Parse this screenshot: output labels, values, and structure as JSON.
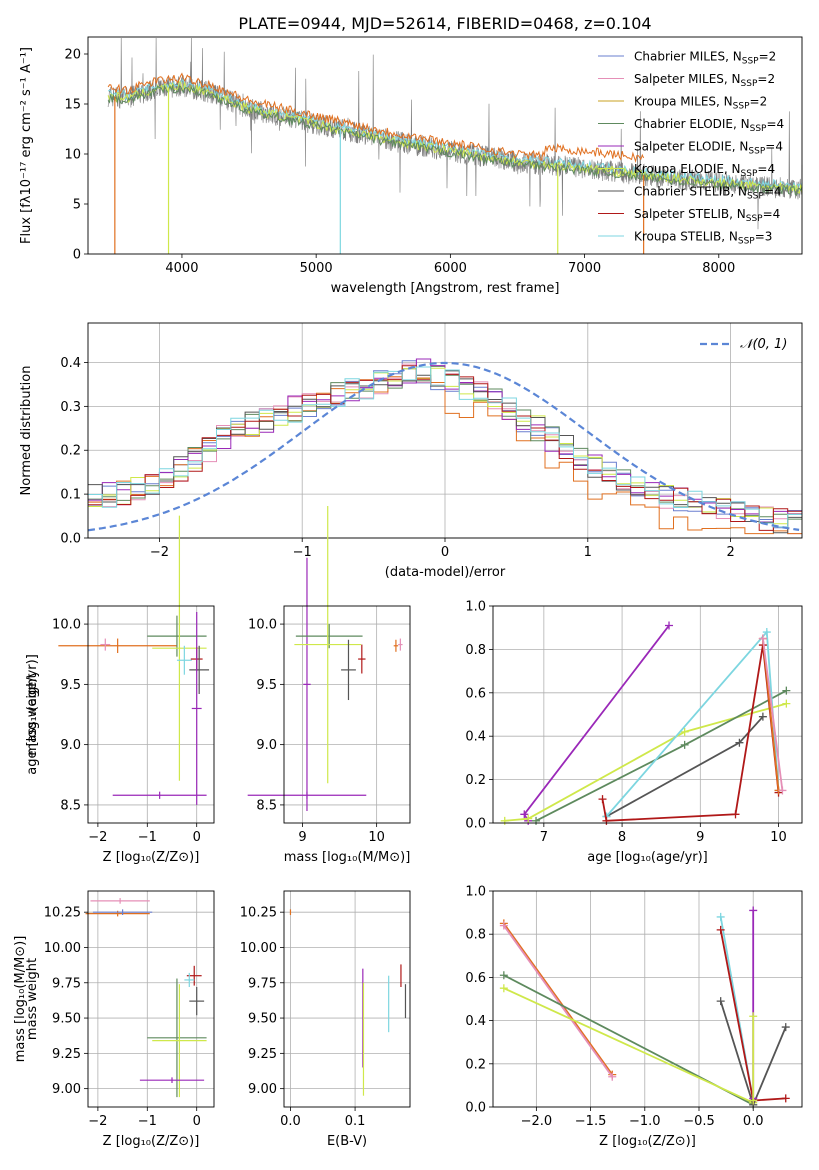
{
  "figure_title": "PLATE=0944, MJD=52614, FIBERID=0468, z=0.104",
  "colors": {
    "Chabrier MILES": "#6a7fcf",
    "Salpeter MILES": "#e58fb7",
    "Kroupa MILES": "#c8a020",
    "Chabrier ELODIE": "#5e8a5e",
    "Salpeter ELODIE": "#9a28b8",
    "Kroupa ELODIE": "#cfe84a",
    "Chabrier STELIB": "#555555",
    "Salpeter STELIB": "#b01818",
    "Kroupa STELIB": "#7dd6e0",
    "Kroupa MILES stepped": "#e07020",
    "normal": "#5b86d6",
    "grid": "#b0b0b0"
  },
  "chart_data": [
    {
      "id": "spectrum",
      "type": "line",
      "xlabel": "wavelength [Angstrom, rest frame]",
      "ylabel": "Flux [fλ10⁻¹⁷ erg cm⁻² s⁻¹ A⁻¹]",
      "xlim": [
        3300,
        8620
      ],
      "ylim": [
        0,
        21.7
      ],
      "xticks": [
        "4000",
        "5000",
        "6000",
        "7000",
        "8000"
      ],
      "yticks": [
        "0",
        "5",
        "10",
        "15",
        "20"
      ],
      "grid": false,
      "legend_position": "top-right",
      "series": [
        {
          "name": "Chabrier MILES, N_SSP=2",
          "label": "Chabrier MILES, N",
          "sub": "SSP",
          "n": "=2"
        },
        {
          "name": "Salpeter MILES, N_SSP=2",
          "label": "Salpeter MILES, N",
          "sub": "SSP",
          "n": "=2"
        },
        {
          "name": "Kroupa MILES, N_SSP=2",
          "label": "Kroupa MILES, N",
          "sub": "SSP",
          "n": "=2"
        },
        {
          "name": "Chabrier ELODIE, N_SSP=4",
          "label": "Chabrier ELODIE, N",
          "sub": "SSP",
          "n": "=4"
        },
        {
          "name": "Salpeter ELODIE, N_SSP=4",
          "label": "Salpeter ELODIE, N",
          "sub": "SSP",
          "n": "=4"
        },
        {
          "name": "Kroupa ELODIE, N_SSP=4",
          "label": "Kroupa ELODIE, N",
          "sub": "SSP",
          "n": "=4"
        },
        {
          "name": "Chabrier STELIB, N_SSP=4",
          "label": "Chabrier STELIB, N",
          "sub": "SSP",
          "n": "=4"
        },
        {
          "name": "Salpeter STELIB, N_SSP=4",
          "label": "Salpeter STELIB, N",
          "sub": "SSP",
          "n": "=4"
        },
        {
          "name": "Kroupa STELIB, N_SSP=3",
          "label": "Kroupa STELIB, N",
          "sub": "SSP",
          "n": "=3"
        }
      ],
      "continuum": {
        "x": [
          3450,
          3600,
          3800,
          4000,
          4200,
          4500,
          4800,
          5000,
          5500,
          6000,
          6500,
          7000,
          7500,
          8000,
          8500,
          8620
        ],
        "y": [
          15.8,
          15.6,
          16.5,
          16.8,
          16.2,
          14.5,
          13.6,
          13.0,
          11.5,
          10.3,
          9.2,
          8.6,
          7.8,
          7.1,
          6.6,
          6.5
        ]
      },
      "drops_to_zero_at": [
        3500,
        3900,
        5180,
        6800,
        7440
      ]
    },
    {
      "id": "residuals",
      "type": "area",
      "xlabel": "(data-model)/error",
      "ylabel": "Normed distribution",
      "xlim": [
        -2.5,
        2.5
      ],
      "ylim": [
        0,
        0.49
      ],
      "xticks": [
        "−2",
        "−1",
        "0",
        "1",
        "2"
      ],
      "yticks": [
        "0.0",
        "0.1",
        "0.2",
        "0.3",
        "0.4"
      ],
      "grid": true,
      "legend_position": "top-right",
      "legend": "𝒩(0, 1)",
      "hist_envelope": {
        "x": [
          -2.5,
          -2.0,
          -1.5,
          -1.0,
          -0.5,
          -0.2,
          0.0,
          0.3,
          0.6,
          1.0,
          1.5,
          2.0,
          2.5
        ],
        "y": [
          0.09,
          0.12,
          0.24,
          0.3,
          0.35,
          0.39,
          0.36,
          0.33,
          0.26,
          0.17,
          0.1,
          0.06,
          0.03
        ]
      }
    },
    {
      "id": "age_vs_Z",
      "type": "scatter",
      "xlabel": "Z [log₁₀(Z/Z⊙)]",
      "ylabel": "age  [log₁₀(age/yr)]",
      "xlim": [
        -2.2,
        0.35
      ],
      "ylim": [
        8.35,
        10.15
      ],
      "xticks": [
        "−2",
        "−1",
        "0"
      ],
      "yticks": [
        "8.5",
        "9.0",
        "9.5",
        "10.0"
      ],
      "grid": true,
      "points": [
        {
          "series": "Kroupa MILES stepped",
          "x": -1.6,
          "y": 9.82,
          "xerr": 1.2,
          "yerr": 0.06
        },
        {
          "series": "Salpeter MILES",
          "x": -1.85,
          "y": 9.83,
          "xerr": 0.1,
          "yerr": 0.05
        },
        {
          "series": "Chabrier ELODIE",
          "x": -0.4,
          "y": 9.9,
          "xerr": 0.6,
          "yerr": 0.17
        },
        {
          "series": "Kroupa ELODIE",
          "x": -0.35,
          "y": 9.8,
          "xerr": 0.55,
          "yerr": 1.1
        },
        {
          "series": "Kroupa STELIB",
          "x": -0.25,
          "y": 9.7,
          "xerr": 0.15,
          "yerr": 0.12
        },
        {
          "series": "Salpeter STELIB",
          "x": 0.0,
          "y": 9.71,
          "xerr": 0.12,
          "yerr": 0.1
        },
        {
          "series": "Chabrier STELIB",
          "x": 0.05,
          "y": 9.62,
          "xerr": 0.2,
          "yerr": 0.2
        },
        {
          "series": "Salpeter ELODIE",
          "x": 0.0,
          "y": 9.3,
          "xerr": 0.1,
          "yerr": 0.8
        },
        {
          "series": "Salpeter ELODIE",
          "x": -0.75,
          "y": 8.58,
          "xerr": 0.95,
          "yerr": 0.03
        }
      ]
    },
    {
      "id": "age_vs_mass",
      "type": "scatter",
      "xlabel": "mass [log₁₀(M/M⊙)]",
      "ylabel": "",
      "xlim": [
        8.75,
        10.45
      ],
      "ylim": [
        8.35,
        10.15
      ],
      "xticks": [
        "9",
        "10"
      ],
      "yticks": [
        "8.5",
        "9.0",
        "9.5",
        "10.0"
      ],
      "grid": true,
      "points": [
        {
          "series": "Salpeter ELODIE",
          "x": 9.06,
          "y": 8.58,
          "xerr": 0.8,
          "yerr": 0.03
        },
        {
          "series": "Salpeter ELODIE",
          "x": 9.06,
          "y": 9.5,
          "xerr": 0.05,
          "yerr": 1.05
        },
        {
          "series": "Chabrier ELODIE",
          "x": 9.36,
          "y": 9.9,
          "xerr": 0.45,
          "yerr": 0.1
        },
        {
          "series": "Kroupa ELODIE",
          "x": 9.34,
          "y": 9.83,
          "xerr": 0.45,
          "yerr": 1.15
        },
        {
          "series": "Chabrier STELIB",
          "x": 9.62,
          "y": 9.62,
          "xerr": 0.1,
          "yerr": 0.25
        },
        {
          "series": "Salpeter STELIB",
          "x": 9.8,
          "y": 9.71,
          "xerr": 0.05,
          "yerr": 0.12
        },
        {
          "series": "Kroupa MILES stepped",
          "x": 10.26,
          "y": 9.82,
          "xerr": 0.03,
          "yerr": 0.05
        },
        {
          "series": "Salpeter MILES",
          "x": 10.32,
          "y": 9.83,
          "xerr": 0.03,
          "yerr": 0.05
        }
      ]
    },
    {
      "id": "weight_vs_age",
      "type": "line",
      "xlabel": "age  [log₁₀(age/yr)]",
      "ylabel": "mass weight",
      "xlim": [
        6.35,
        10.3
      ],
      "ylim": [
        0,
        1.0
      ],
      "xticks": [
        "7",
        "8",
        "9",
        "10"
      ],
      "yticks": [
        "0.0",
        "0.2",
        "0.4",
        "0.6",
        "0.8",
        "1.0"
      ],
      "grid": true,
      "series": [
        {
          "name": "Salpeter ELODIE",
          "x": [
            6.8,
            6.75,
            8.6
          ],
          "y": [
            0.01,
            0.04,
            0.91
          ]
        },
        {
          "name": "Kroupa ELODIE",
          "x": [
            6.5,
            6.8,
            8.8,
            10.1
          ],
          "y": [
            0.01,
            0.02,
            0.42,
            0.55
          ]
        },
        {
          "name": "Chabrier ELODIE",
          "x": [
            6.9,
            8.8,
            10.1
          ],
          "y": [
            0.01,
            0.36,
            0.61
          ]
        },
        {
          "name": "Chabrier STELIB",
          "x": [
            7.8,
            9.5,
            9.8
          ],
          "y": [
            0.03,
            0.37,
            0.49
          ]
        },
        {
          "name": "Kroupa STELIB",
          "x": [
            7.8,
            9.85,
            10.0
          ],
          "y": [
            0.03,
            0.88,
            0.15
          ]
        },
        {
          "name": "Salpeter STELIB",
          "x": [
            7.75,
            7.8,
            9.45,
            9.8,
            10.0
          ],
          "y": [
            0.11,
            0.01,
            0.04,
            0.82,
            0.14
          ]
        },
        {
          "name": "Kroupa MILES stepped",
          "x": [
            9.8,
            10.0
          ],
          "y": [
            0.85,
            0.15
          ]
        },
        {
          "name": "Salpeter MILES",
          "x": [
            9.8,
            10.05
          ],
          "y": [
            0.85,
            0.15
          ]
        }
      ]
    },
    {
      "id": "mass_vs_Z",
      "type": "scatter",
      "xlabel": "Z [log₁₀(Z/Z⊙)]",
      "ylabel": "mass [log₁₀(M/M⊙)]",
      "xlim": [
        -2.2,
        0.35
      ],
      "ylim": [
        8.87,
        10.4
      ],
      "xticks": [
        "−2",
        "−1",
        "0"
      ],
      "yticks": [
        "9.00",
        "9.25",
        "9.50",
        "9.75",
        "10.00",
        "10.25"
      ],
      "grid": true,
      "points": [
        {
          "series": "Salpeter MILES",
          "x": -1.55,
          "y": 10.33,
          "xerr": 0.6,
          "yerr": 0.02
        },
        {
          "series": "Kroupa MILES stepped",
          "x": -1.6,
          "y": 10.24,
          "xerr": 0.65,
          "yerr": 0.02
        },
        {
          "series": "Chabrier MILES",
          "x": -1.5,
          "y": 10.25,
          "xerr": 0.6,
          "yerr": 0.02
        },
        {
          "series": "Salpeter STELIB",
          "x": -0.05,
          "y": 9.8,
          "xerr": 0.15,
          "yerr": 0.07
        },
        {
          "series": "Kroupa STELIB",
          "x": -0.15,
          "y": 9.77,
          "xerr": 0.1,
          "yerr": 0.05
        },
        {
          "series": "Chabrier STELIB",
          "x": 0.0,
          "y": 9.62,
          "xerr": 0.15,
          "yerr": 0.1
        },
        {
          "series": "Chabrier ELODIE",
          "x": -0.4,
          "y": 9.36,
          "xerr": 0.6,
          "yerr": 0.42
        },
        {
          "series": "Kroupa ELODIE",
          "x": -0.35,
          "y": 9.34,
          "xerr": 0.55,
          "yerr": 0.4
        },
        {
          "series": "Salpeter ELODIE",
          "x": -0.5,
          "y": 9.06,
          "xerr": 0.65,
          "yerr": 0.02
        }
      ]
    },
    {
      "id": "mass_vs_EBV",
      "type": "scatter",
      "xlabel": "E(B-V)",
      "ylabel": "",
      "xlim": [
        -0.01,
        0.185
      ],
      "ylim": [
        8.87,
        10.4
      ],
      "xticks": [
        "0.0",
        "0.1"
      ],
      "yticks": [
        "9.00",
        "9.25",
        "9.50",
        "9.75",
        "10.00",
        "10.25"
      ],
      "grid": true,
      "points": [
        {
          "series": "Kroupa MILES stepped",
          "x": 0.0,
          "y": 10.25,
          "xerr": 0.0,
          "yerr": 0.02
        },
        {
          "series": "Salpeter ELODIE",
          "x": 0.112,
          "y": 9.5,
          "xerr": 0.0,
          "yerr": 0.35
        },
        {
          "series": "Kroupa ELODIE",
          "x": 0.113,
          "y": 9.35,
          "xerr": 0.0,
          "yerr": 0.4
        },
        {
          "series": "Kroupa STELIB",
          "x": 0.152,
          "y": 9.6,
          "xerr": 0.0,
          "yerr": 0.2
        },
        {
          "series": "Salpeter STELIB",
          "x": 0.171,
          "y": 9.8,
          "xerr": 0.0,
          "yerr": 0.08
        },
        {
          "series": "Chabrier STELIB",
          "x": 0.178,
          "y": 9.62,
          "xerr": 0.0,
          "yerr": 0.12
        }
      ]
    },
    {
      "id": "weight_vs_Z",
      "type": "line",
      "xlabel": "Z [log₁₀(Z/Z⊙)]",
      "ylabel": "mass weight",
      "xlim": [
        -2.4,
        0.45
      ],
      "ylim": [
        0,
        1.0
      ],
      "xticks": [
        "−2.0",
        "−1.5",
        "−1.0",
        "−0.5",
        "0.0"
      ],
      "yticks": [
        "0.0",
        "0.2",
        "0.4",
        "0.6",
        "0.8",
        "1.0"
      ],
      "grid": true,
      "series": [
        {
          "name": "Kroupa MILES stepped",
          "x": [
            -2.3,
            -1.3
          ],
          "y": [
            0.85,
            0.15
          ]
        },
        {
          "name": "Salpeter MILES",
          "x": [
            -2.3,
            -1.3
          ],
          "y": [
            0.84,
            0.14
          ]
        },
        {
          "name": "Chabrier ELODIE",
          "x": [
            -2.3,
            0.0
          ],
          "y": [
            0.61,
            0.01
          ]
        },
        {
          "name": "Kroupa ELODIE",
          "x": [
            -2.3,
            0.0
          ],
          "y": [
            0.55,
            0.02
          ]
        },
        {
          "name": "Chabrier STELIB",
          "x": [
            -0.3,
            0.0,
            0.3
          ],
          "y": [
            0.49,
            0.01,
            0.37
          ]
        },
        {
          "name": "Kroupa STELIB",
          "x": [
            -0.3,
            0.0
          ],
          "y": [
            0.88,
            0.03
          ]
        },
        {
          "name": "Salpeter STELIB",
          "x": [
            -0.3,
            0.0,
            0.3
          ],
          "y": [
            0.82,
            0.03,
            0.04
          ]
        },
        {
          "name": "Salpeter ELODIE",
          "x": [
            0.0,
            0.0
          ],
          "y": [
            0.91,
            0.04
          ]
        },
        {
          "name": "Kroupa ELODIE",
          "x": [
            0.0,
            0.0
          ],
          "y": [
            0.42,
            0.03
          ]
        }
      ]
    }
  ]
}
